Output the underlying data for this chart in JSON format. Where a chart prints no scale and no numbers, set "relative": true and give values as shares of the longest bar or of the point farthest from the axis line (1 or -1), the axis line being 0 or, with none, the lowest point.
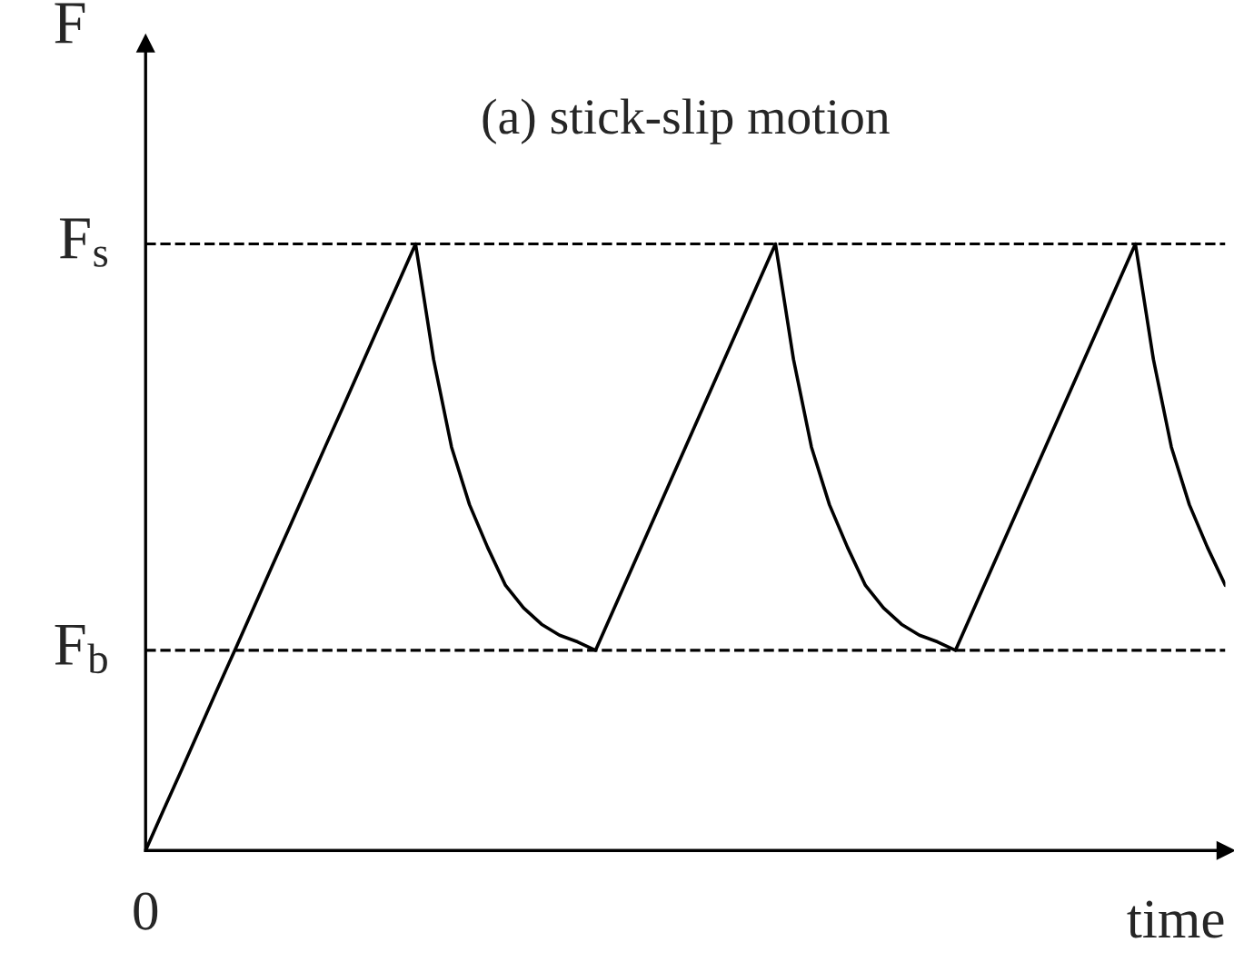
{
  "chart_data": {
    "type": "line",
    "title": "(a) stick-slip motion",
    "xlabel": "time",
    "ylabel": "F",
    "relative": true,
    "categories": [
      null,
      null,
      null,
      null,
      null,
      null,
      null,
      null,
      null,
      null,
      null,
      null,
      null,
      null,
      null,
      null,
      null,
      null,
      null,
      null,
      null,
      null,
      null,
      null,
      null,
      null,
      null,
      null,
      null,
      null,
      null,
      null,
      null,
      null,
      null,
      null,
      null,
      null,
      null,
      null,
      null,
      null,
      null,
      null,
      null,
      null,
      null,
      null,
      null,
      null,
      null,
      null,
      null,
      null,
      null,
      null,
      null,
      null,
      null,
      null,
      null
    ],
    "series": [
      {
        "color": "#000000",
        "values": [
          0,
          0.067,
          0.133,
          0.2,
          0.267,
          0.333,
          0.4,
          0.467,
          0.533,
          0.6,
          0.667,
          0.733,
          0.8,
          0.867,
          0.933,
          1,
          0.81,
          0.665,
          0.57,
          0.5,
          0.437,
          0.4,
          0.373,
          0.355,
          0.344,
          0.33,
          0.397,
          0.464,
          0.531,
          0.598,
          0.665,
          0.732,
          0.799,
          0.866,
          0.933,
          1,
          0.81,
          0.665,
          0.57,
          0.5,
          0.437,
          0.4,
          0.373,
          0.355,
          0.344,
          0.33,
          0.397,
          0.464,
          0.531,
          0.598,
          0.665,
          0.732,
          0.799,
          0.866,
          0.933,
          1,
          0.81,
          0.665,
          0.57,
          0.5,
          0.437
        ]
      }
    ],
    "annotations": [
      "0"
    ],
    "ref_lines": [
      {
        "axis": "y",
        "value": 1,
        "label": "F$_{s}$",
        "color": "#000000",
        "line_style": "dashed"
      },
      {
        "axis": "y",
        "value": 0.33,
        "label": "F$_{b}$",
        "color": "#000000",
        "line_style": "dashed"
      }
    ],
    "marker": "none",
    "line_style": "solid"
  }
}
